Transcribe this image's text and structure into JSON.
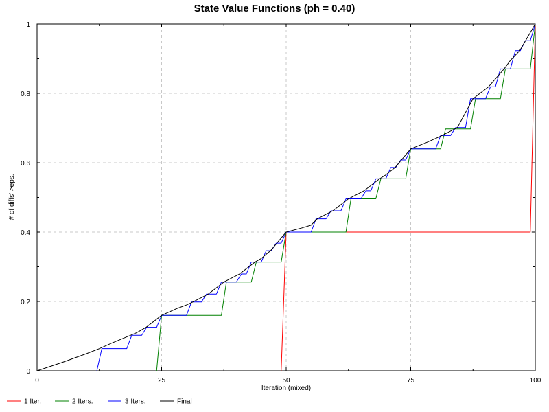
{
  "chart_data": {
    "type": "line",
    "title": "State Value Functions (ph = 0.40)",
    "xlabel": "Iteration (mixed)",
    "ylabel": "# of diffs' >eps.",
    "xlim": [
      0,
      100
    ],
    "ylim": [
      0,
      1
    ],
    "xticks": [
      "0",
      "25",
      "50",
      "75",
      "100"
    ],
    "yticks": [
      "0",
      "0.2",
      "0.4",
      "0.6",
      "0.8",
      "1"
    ],
    "grid": true,
    "legend_position": "bottom",
    "series": [
      {
        "name": "1 Iter.",
        "color": "#ff0000",
        "x": [
          49,
          50,
          99,
          100
        ],
        "y": [
          0,
          0.4,
          0.4,
          1
        ]
      },
      {
        "name": "2 Iters.",
        "color": "#008000",
        "x": [
          24,
          25,
          37,
          38,
          43,
          44,
          49,
          50,
          62,
          63,
          68,
          69,
          74,
          75,
          81,
          82,
          87,
          88,
          93,
          94,
          99,
          100
        ],
        "y": [
          0,
          0.16,
          0.16,
          0.256,
          0.256,
          0.3136,
          0.3136,
          0.4,
          0.4,
          0.496,
          0.496,
          0.5536,
          0.5536,
          0.64,
          0.64,
          0.6976,
          0.6976,
          0.7846,
          0.7846,
          0.8706,
          0.8706,
          1
        ]
      },
      {
        "name": "3 Iters.",
        "color": "#0000ff",
        "x": [
          12,
          13,
          18,
          19,
          21,
          22,
          24,
          25,
          30,
          31,
          33,
          34,
          36,
          37,
          40,
          41,
          42,
          43,
          45,
          46,
          47,
          48,
          49,
          50,
          55,
          56,
          58,
          59,
          61,
          62,
          65,
          66,
          67,
          68,
          70,
          71,
          72,
          73,
          74,
          75,
          80,
          81,
          83,
          84,
          86,
          87,
          90,
          91,
          92,
          93,
          95,
          96,
          97,
          98,
          99,
          100
        ],
        "y": [
          0,
          0.064,
          0.064,
          0.1024,
          0.1024,
          0.1254,
          0.1254,
          0.16,
          0.16,
          0.1984,
          0.1984,
          0.2214,
          0.2214,
          0.256,
          0.256,
          0.2791,
          0.2791,
          0.3137,
          0.3137,
          0.3464,
          0.3464,
          0.368,
          0.368,
          0.4,
          0.4,
          0.4384,
          0.4384,
          0.4614,
          0.4614,
          0.496,
          0.496,
          0.5191,
          0.5191,
          0.5537,
          0.5537,
          0.5864,
          0.5864,
          0.608,
          0.608,
          0.64,
          0.64,
          0.6784,
          0.6784,
          0.7014,
          0.7014,
          0.7846,
          0.7846,
          0.8191,
          0.8191,
          0.8706,
          0.8706,
          0.9232,
          0.9232,
          0.952,
          0.952,
          1
        ]
      },
      {
        "name": "Final",
        "color": "#000000",
        "x": [
          0,
          5,
          10,
          12.5,
          15,
          18.75,
          20,
          21.875,
          25,
          28.125,
          30,
          31.25,
          34.375,
          37.5,
          40.625,
          43.75,
          45,
          46.875,
          50,
          53.125,
          55,
          56.25,
          59.375,
          62.5,
          65.625,
          68.75,
          70,
          71.875,
          75,
          78.125,
          80,
          81.25,
          84.375,
          87.5,
          90.625,
          93.75,
          95,
          96.875,
          100
        ],
        "y": [
          0,
          0.024,
          0.05,
          0.064,
          0.08,
          0.1024,
          0.11,
          0.1254,
          0.16,
          0.18,
          0.19,
          0.1984,
          0.2214,
          0.256,
          0.2791,
          0.3137,
          0.324,
          0.3464,
          0.4,
          0.412,
          0.42,
          0.4384,
          0.4614,
          0.496,
          0.5191,
          0.5537,
          0.565,
          0.5864,
          0.64,
          0.658,
          0.67,
          0.6784,
          0.7014,
          0.7846,
          0.8191,
          0.8706,
          0.895,
          0.9232,
          1
        ]
      }
    ]
  }
}
